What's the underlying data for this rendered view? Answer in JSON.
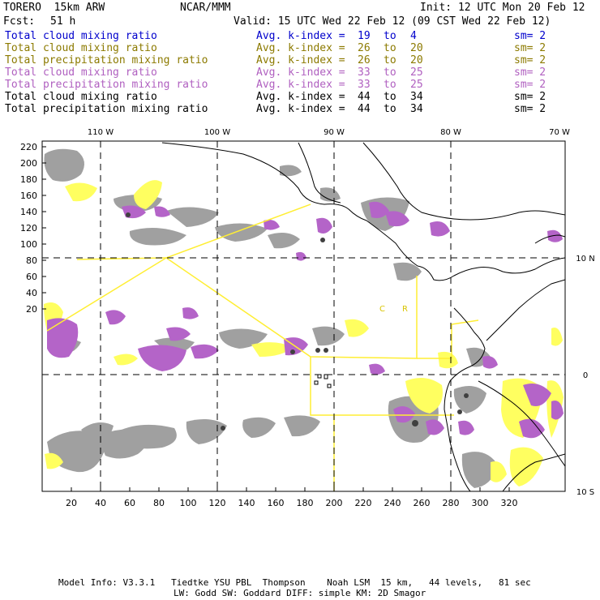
{
  "header": {
    "model": "TORERO  15km ARW",
    "org": "NCAR/MMM",
    "init": "Init: 12 UTC Mon 20 Feb 12",
    "fcst_label": "Fcst:",
    "fcst_value": "51 h",
    "valid": "Valid: 15 UTC Wed 22 Feb 12 (09 CST Wed 22 Feb 12)"
  },
  "legend": [
    {
      "field": "Total cloud mixing ratio",
      "kindex_label": "Avg. k-index =",
      "k1": "19",
      "to": "to",
      "k2": "4",
      "sm": "sm= 2",
      "color": "#0000cc"
    },
    {
      "field": "Total cloud mixing ratio",
      "kindex_label": "Avg. k-index =",
      "k1": "26",
      "to": "to",
      "k2": "20",
      "sm": "sm= 2",
      "color": "#8c7a00"
    },
    {
      "field": "Total precipitation mixing ratio",
      "kindex_label": "Avg. k-index =",
      "k1": "26",
      "to": "to",
      "k2": "20",
      "sm": "sm= 2",
      "color": "#8c7a00"
    },
    {
      "field": "Total cloud mixing ratio",
      "kindex_label": "Avg. k-index =",
      "k1": "33",
      "to": "to",
      "k2": "25",
      "sm": "sm= 2",
      "color": "#b060c0"
    },
    {
      "field": "Total precipitation mixing ratio",
      "kindex_label": "Avg. k-index =",
      "k1": "33",
      "to": "to",
      "k2": "25",
      "sm": "sm= 2",
      "color": "#b060c0"
    },
    {
      "field": "Total cloud mixing ratio",
      "kindex_label": "Avg. k-index =",
      "k1": "44",
      "to": "to",
      "k2": "34",
      "sm": "sm= 2",
      "color": "#000000"
    },
    {
      "field": "Total precipitation mixing ratio",
      "kindex_label": "Avg. k-index =",
      "k1": "44",
      "to": "to",
      "k2": "34",
      "sm": "sm= 2",
      "color": "#000000"
    }
  ],
  "map": {
    "lon_labels": [
      "110 W",
      "100 W",
      "90 W",
      "80 W",
      "70 W"
    ],
    "lat_labels": [
      "10 N",
      "0",
      "10 S"
    ],
    "x_ticks": [
      "20",
      "40",
      "60",
      "80",
      "100",
      "120",
      "140",
      "160",
      "180",
      "200",
      "220",
      "240",
      "260",
      "280",
      "300",
      "320"
    ],
    "y_ticks": [
      "220",
      "200",
      "180",
      "160",
      "140",
      "120",
      "100",
      "80",
      "60",
      "40",
      "20"
    ],
    "region_labels": [
      "C",
      "R"
    ],
    "colors": {
      "yellow": "#ffff60",
      "purple": "#b464c8",
      "gray": "#a0a0a0",
      "dark": "#404040",
      "line": "#ffee33"
    }
  },
  "footer": {
    "line1": "Model Info: V3.3.1   Tiedtke YSU PBL  Thompson    Noah LSM  15 km,   44 levels,   81 sec",
    "line2": "LW: Godd SW: Goddard DIFF: simple KM: 2D Smagor"
  }
}
